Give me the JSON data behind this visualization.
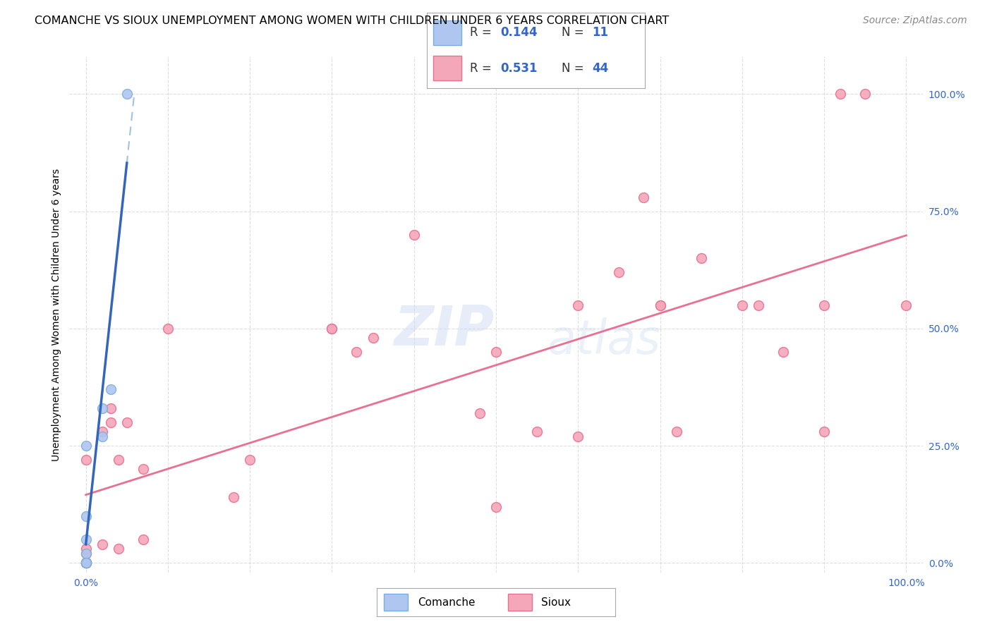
{
  "title": "COMANCHE VS SIOUX UNEMPLOYMENT AMONG WOMEN WITH CHILDREN UNDER 6 YEARS CORRELATION CHART",
  "source": "Source: ZipAtlas.com",
  "ylabel": "Unemployment Among Women with Children Under 6 years",
  "xlim": [
    -0.02,
    1.02
  ],
  "ylim": [
    -0.02,
    1.08
  ],
  "xtick_vals": [
    0.0,
    0.1,
    0.2,
    0.3,
    0.4,
    0.5,
    0.6,
    0.7,
    0.8,
    0.9,
    1.0
  ],
  "ytick_vals": [
    0.0,
    0.25,
    0.5,
    0.75,
    1.0
  ],
  "ytick_labels": [
    "0.0%",
    "25.0%",
    "50.0%",
    "75.0%",
    "100.0%"
  ],
  "xtick_labels_show": [
    "0.0%",
    "",
    "",
    "",
    "",
    "",
    "",
    "",
    "",
    "",
    "100.0%"
  ],
  "comanche_color": "#aec6f0",
  "sioux_color": "#f4a7b9",
  "comanche_edge_color": "#7baede",
  "sioux_edge_color": "#e87090",
  "trend_comanche_color": "#6699cc",
  "trend_sioux_color": "#e87090",
  "legend_r_comanche": "0.144",
  "legend_n_comanche": "11",
  "legend_r_sioux": "0.531",
  "legend_n_sioux": "44",
  "watermark_zip": "ZIP",
  "watermark_atlas": "atlas",
  "comanche_x": [
    0.0,
    0.0,
    0.0,
    0.0,
    0.0,
    0.0,
    0.02,
    0.02,
    0.03,
    0.0,
    0.05
  ],
  "comanche_y": [
    0.0,
    0.0,
    0.02,
    0.05,
    0.1,
    0.25,
    0.27,
    0.33,
    0.37,
    0.0,
    1.0
  ],
  "sioux_x": [
    0.0,
    0.0,
    0.0,
    0.0,
    0.0,
    0.0,
    0.0,
    0.02,
    0.02,
    0.03,
    0.03,
    0.04,
    0.04,
    0.05,
    0.07,
    0.07,
    0.1,
    0.18,
    0.2,
    0.3,
    0.3,
    0.33,
    0.35,
    0.4,
    0.48,
    0.5,
    0.5,
    0.55,
    0.6,
    0.6,
    0.65,
    0.68,
    0.7,
    0.7,
    0.72,
    0.75,
    0.8,
    0.82,
    0.85,
    0.9,
    0.9,
    0.92,
    0.95,
    1.0
  ],
  "sioux_y": [
    0.0,
    0.0,
    0.0,
    0.0,
    0.02,
    0.03,
    0.22,
    0.04,
    0.28,
    0.3,
    0.33,
    0.03,
    0.22,
    0.3,
    0.05,
    0.2,
    0.5,
    0.14,
    0.22,
    0.5,
    0.5,
    0.45,
    0.48,
    0.7,
    0.32,
    0.45,
    0.12,
    0.28,
    0.27,
    0.55,
    0.62,
    0.78,
    0.55,
    0.55,
    0.28,
    0.65,
    0.55,
    0.55,
    0.45,
    0.55,
    0.28,
    1.0,
    1.0,
    0.55
  ],
  "marker_size": 100,
  "background_color": "#ffffff",
  "grid_color": "#d0d0d0",
  "title_fontsize": 11.5,
  "axis_label_fontsize": 10,
  "tick_label_fontsize": 10,
  "legend_fontsize": 12,
  "source_fontsize": 10
}
